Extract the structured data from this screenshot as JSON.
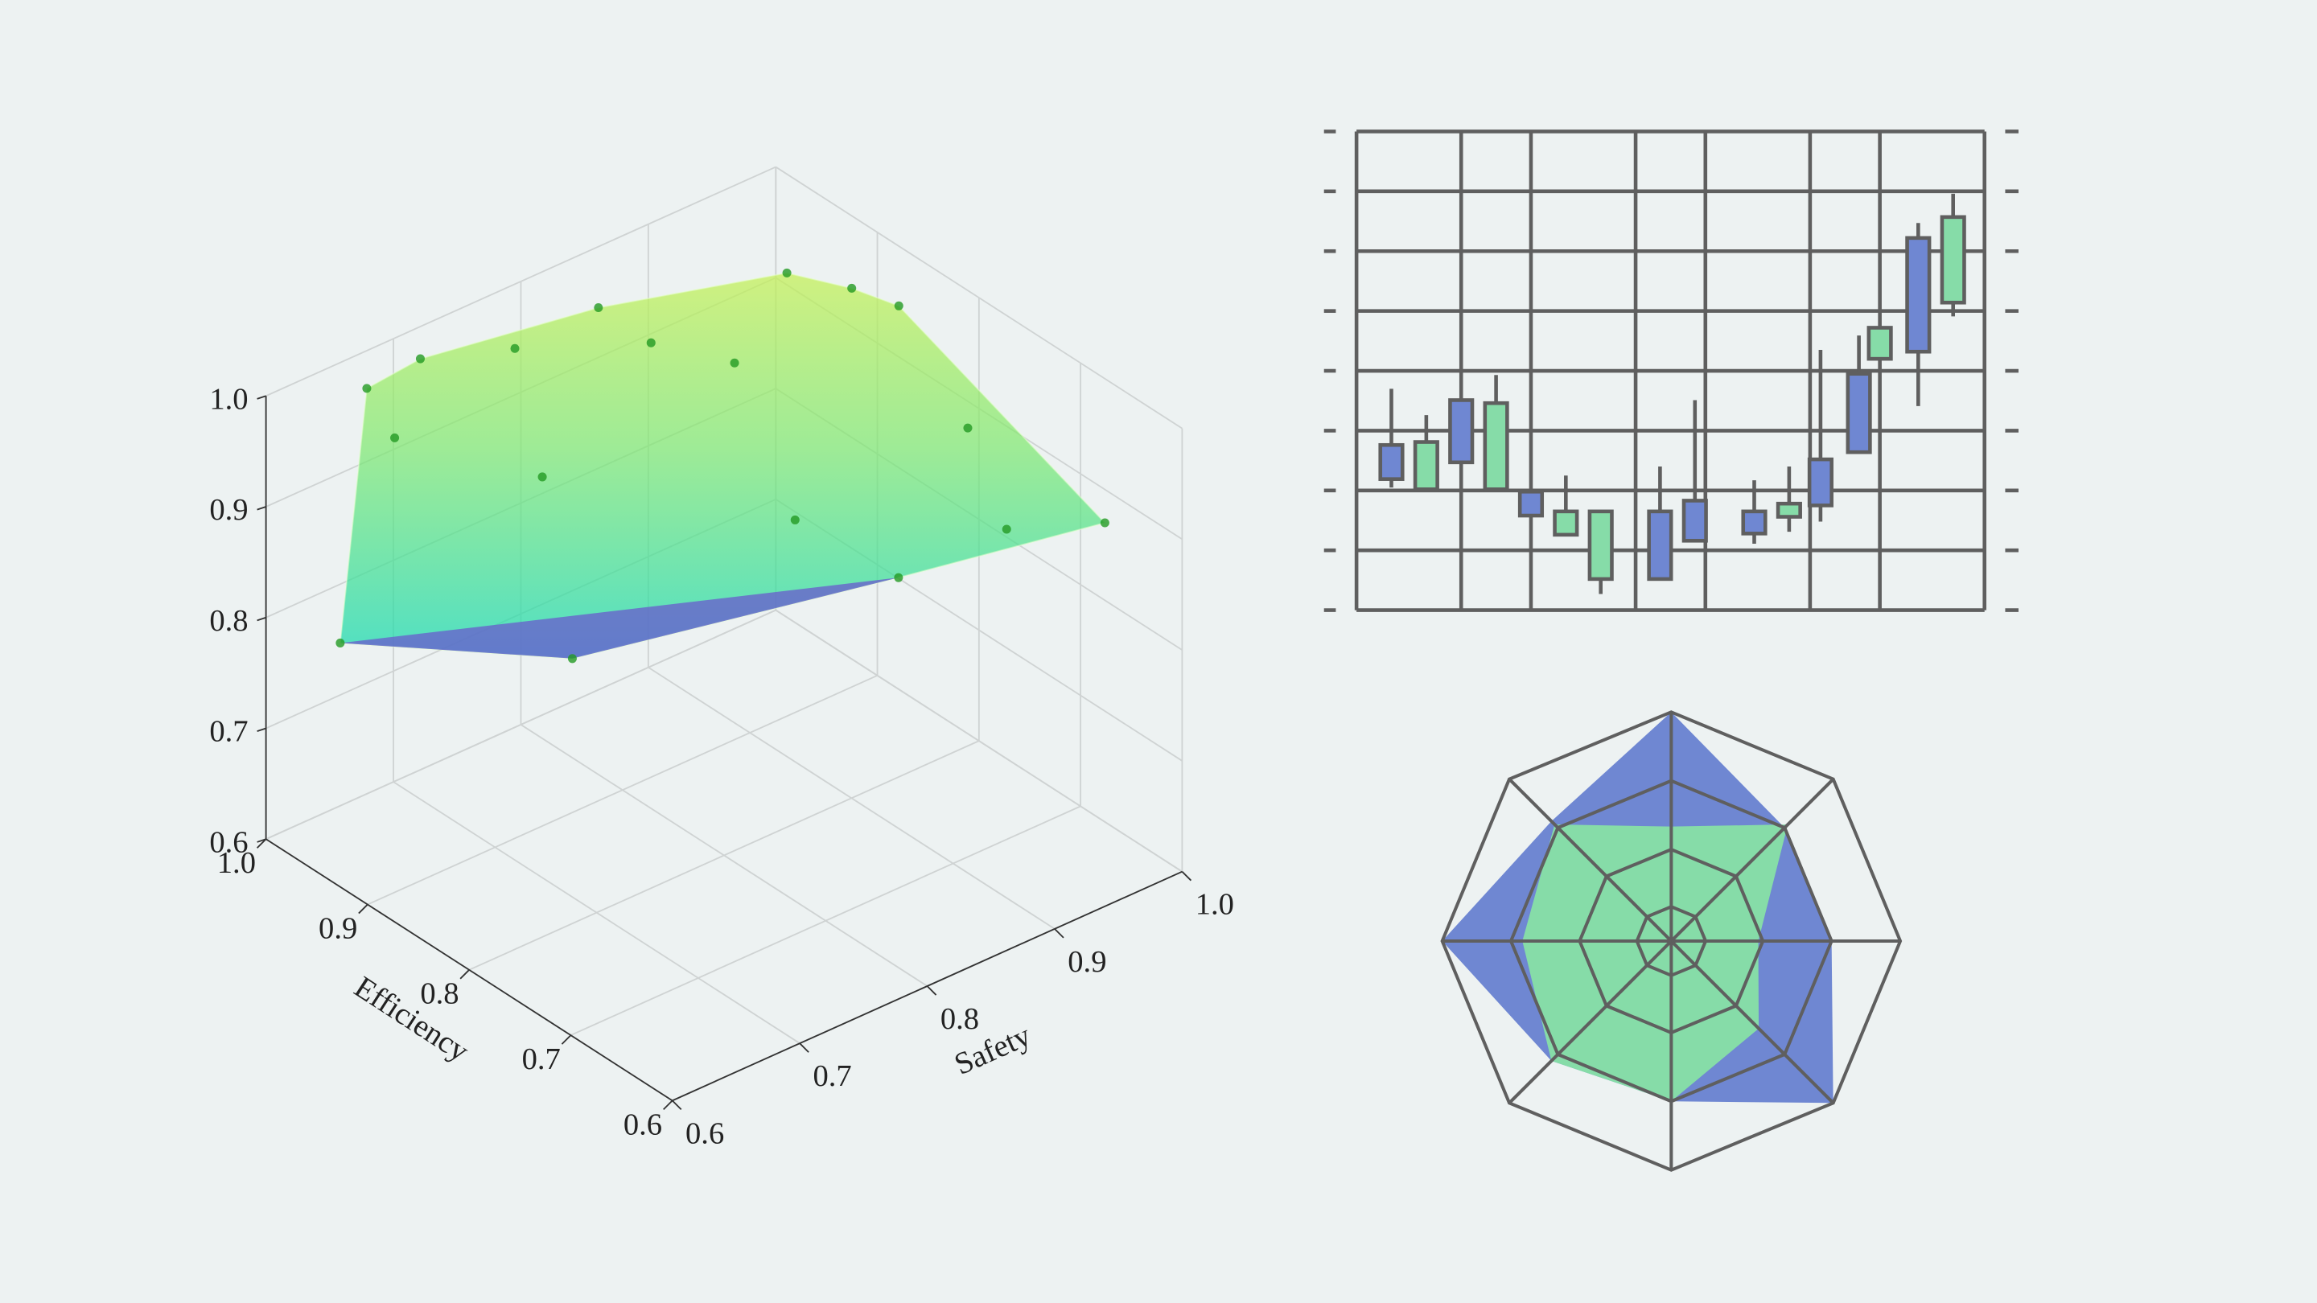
{
  "chart_data": [
    {
      "type": "scatter3d",
      "xlabel": "Efficiency",
      "ylabel": "Safety",
      "x": [
        0.947,
        0.859,
        0.666,
        0.966,
        0.9,
        0.845,
        0.971,
        0.945,
        0.747,
        0.7,
        0.935,
        0.99,
        0.76,
        0.88,
        0.912,
        0.962,
        0.774,
        0.86
      ],
      "y": [
        0.616,
        0.728,
        0.992,
        0.652,
        0.929,
        0.973,
        0.698,
        0.817,
        0.949,
        0.942,
        0.765,
        0.693,
        0.905,
        0.872,
        0.832,
        0.765,
        0.835,
        0.948
      ],
      "z": [
        0.8,
        0.78,
        0.88,
        1.0,
        1.0,
        0.98,
        1.0,
        1.0,
        0.94,
        0.88,
        0.88,
        0.92,
        0.82,
        0.96,
        0.98,
        0.98,
        0.9,
        1.0
      ],
      "color": "#239a23",
      "xlim": [
        0.6,
        1.0
      ],
      "ylim": [
        0.6,
        1.0
      ],
      "zlim": [
        0.6,
        1.0
      ],
      "xticks": [
        0.6,
        0.7,
        0.8,
        0.9,
        {
          "value": 1.0,
          "label": "1.0"
        }
      ],
      "yticks": [
        0.6,
        0.7,
        0.8,
        0.9,
        {
          "value": 1.0,
          "label": "1.0"
        }
      ],
      "zticks": [
        0.6,
        0.7,
        0.8,
        0.9,
        {
          "value": 1.0,
          "label": "1.0"
        }
      ],
      "grid": true
    },
    {
      "type": "candlestick",
      "x": [
        1.0,
        2.0,
        3.0,
        4.0,
        5.0,
        6.0,
        7.0,
        8.7,
        9.7,
        11.4,
        12.4,
        13.3,
        14.4,
        15.0,
        16.1,
        17.1
      ],
      "open": [
        2.76,
        2.02,
        3.51,
        2.02,
        1.98,
        1.26,
        0.52,
        1.65,
        1.83,
        1.65,
        1.56,
        2.52,
        3.95,
        4.2,
        6.22,
        5.14
      ],
      "high": [
        3.7,
        3.26,
        3.51,
        3.93,
        1.98,
        2.25,
        1.65,
        2.4,
        3.51,
        2.17,
        2.4,
        4.35,
        4.59,
        4.72,
        6.47,
        6.96
      ],
      "low": [
        2.05,
        2.02,
        2.47,
        2.02,
        1.58,
        1.26,
        0.27,
        0.52,
        1.16,
        1.11,
        1.31,
        1.48,
        2.64,
        4.2,
        3.41,
        4.91
      ],
      "close": [
        2.19,
        2.81,
        2.47,
        3.46,
        1.58,
        1.65,
        1.65,
        0.52,
        1.16,
        1.28,
        1.78,
        1.75,
        2.64,
        4.72,
        4.32,
        6.57
      ],
      "up_color": "#86dca8",
      "down_color": "#6f87d2",
      "xlim": [
        0,
        18
      ],
      "xticks": [
        0,
        3,
        5,
        8,
        10,
        13,
        15,
        18
      ],
      "ylim": [
        0,
        8
      ],
      "yticks": [
        0,
        1,
        2,
        3,
        4,
        5,
        6,
        7,
        8
      ],
      "grid": true
    },
    {
      "type": "radar",
      "rlim": [
        0,
        1
      ],
      "rticks": [
        0.15,
        0.4,
        0.7,
        1
      ],
      "series": [
        {
          "color": "#6f87d2",
          "values": [
            1.0,
            0.7,
            0.7,
            1.0,
            0.7,
            0.74,
            1.0,
            0.74
          ]
        },
        {
          "color": "#86dca8",
          "values": [
            0.5,
            0.72,
            0.38,
            0.54,
            0.7,
            0.74,
            0.65,
            0.72
          ]
        }
      ]
    }
  ]
}
